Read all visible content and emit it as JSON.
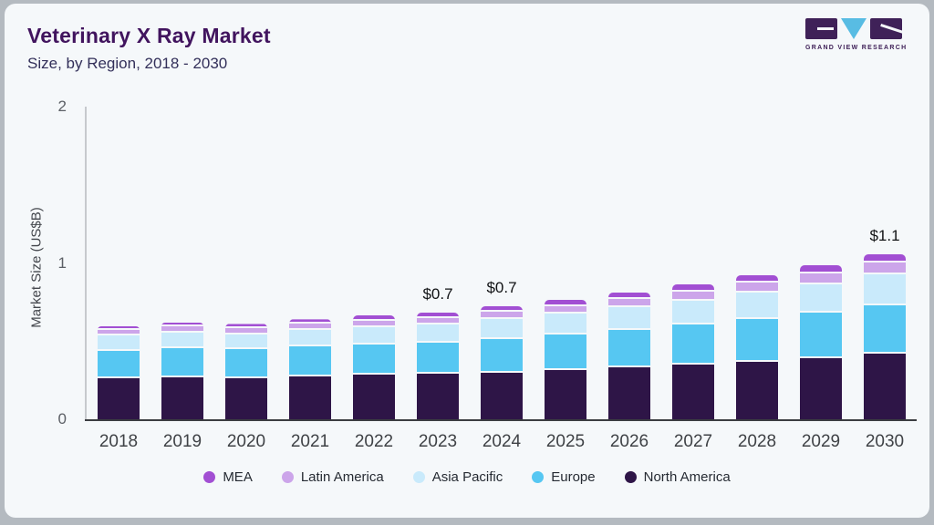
{
  "header": {
    "title": "Veterinary X Ray Market",
    "subtitle": "Size, by Region, 2018 - 2030"
  },
  "logo": {
    "text": "GRAND VIEW RESEARCH",
    "purple": "#3f2158",
    "blue": "#58bce3"
  },
  "chart_data": {
    "type": "bar",
    "stacked": true,
    "title": "Veterinary X Ray Market",
    "subtitle": "Size, by Region, 2018 - 2030",
    "xlabel": "",
    "ylabel": "Market Size (US$B)",
    "ylim": [
      0,
      2
    ],
    "y_ticks": [
      "0",
      "1",
      "2"
    ],
    "grid": false,
    "legend_position": "bottom",
    "categories": [
      "2018",
      "2019",
      "2020",
      "2021",
      "2022",
      "2023",
      "2024",
      "2025",
      "2026",
      "2027",
      "2028",
      "2029",
      "2030"
    ],
    "series": [
      {
        "name": "North America",
        "color": "#2e1547",
        "values": [
          0.26,
          0.27,
          0.265,
          0.275,
          0.285,
          0.29,
          0.3,
          0.315,
          0.33,
          0.35,
          0.37,
          0.39,
          0.42
        ]
      },
      {
        "name": "Europe",
        "color": "#56c7f2",
        "values": [
          0.18,
          0.185,
          0.182,
          0.19,
          0.195,
          0.2,
          0.215,
          0.225,
          0.24,
          0.255,
          0.27,
          0.29,
          0.31
        ]
      },
      {
        "name": "Asia Pacific",
        "color": "#c9eafb",
        "values": [
          0.095,
          0.1,
          0.098,
          0.105,
          0.11,
          0.115,
          0.125,
          0.135,
          0.145,
          0.155,
          0.17,
          0.185,
          0.2
        ]
      },
      {
        "name": "Latin America",
        "color": "#cca5ea",
        "values": [
          0.035,
          0.038,
          0.038,
          0.04,
          0.042,
          0.044,
          0.047,
          0.05,
          0.054,
          0.058,
          0.063,
          0.068,
          0.073
        ]
      },
      {
        "name": "MEA",
        "color": "#a24fd3",
        "values": [
          0.025,
          0.027,
          0.027,
          0.03,
          0.032,
          0.034,
          0.036,
          0.038,
          0.041,
          0.044,
          0.047,
          0.052,
          0.055
        ]
      }
    ],
    "total_labels": [
      "",
      "",
      "",
      "",
      "",
      "$0.7",
      "$0.7",
      "",
      "",
      "",
      "",
      "",
      "$1.1"
    ],
    "legend_order": [
      "MEA",
      "Latin America",
      "Asia Pacific",
      "Europe",
      "North America"
    ]
  }
}
